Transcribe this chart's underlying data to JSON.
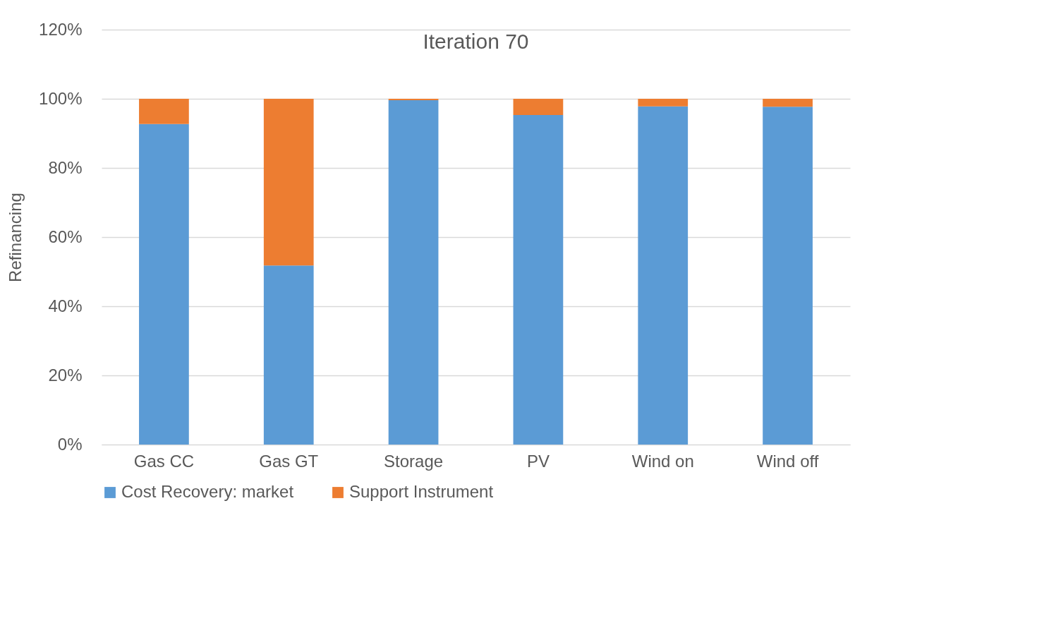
{
  "chart_data": {
    "type": "bar",
    "title": "Iteration 70",
    "ylabel": "Refinancing",
    "stacked": true,
    "categories": [
      "Gas CC",
      "Gas GT",
      "Storage",
      "PV",
      "Wind on",
      "Wind off"
    ],
    "series": [
      {
        "name": "Cost Recovery: market",
        "color": "#5b9bd5",
        "values": [
          92.7,
          51.8,
          99.6,
          95.3,
          97.8,
          97.7
        ]
      },
      {
        "name": "Support Instrument",
        "color": "#ed7d31",
        "values": [
          7.3,
          48.2,
          0.4,
          4.7,
          2.2,
          2.3
        ]
      }
    ],
    "ylim": [
      0,
      120
    ],
    "yticks": [
      {
        "value": 0,
        "label": "0%"
      },
      {
        "value": 20,
        "label": "20%"
      },
      {
        "value": 40,
        "label": "40%"
      },
      {
        "value": 60,
        "label": "60%"
      },
      {
        "value": 80,
        "label": "80%"
      },
      {
        "value": 100,
        "label": "100%"
      },
      {
        "value": 120,
        "label": "120%"
      }
    ],
    "grid": "y",
    "legend": "bottom"
  }
}
